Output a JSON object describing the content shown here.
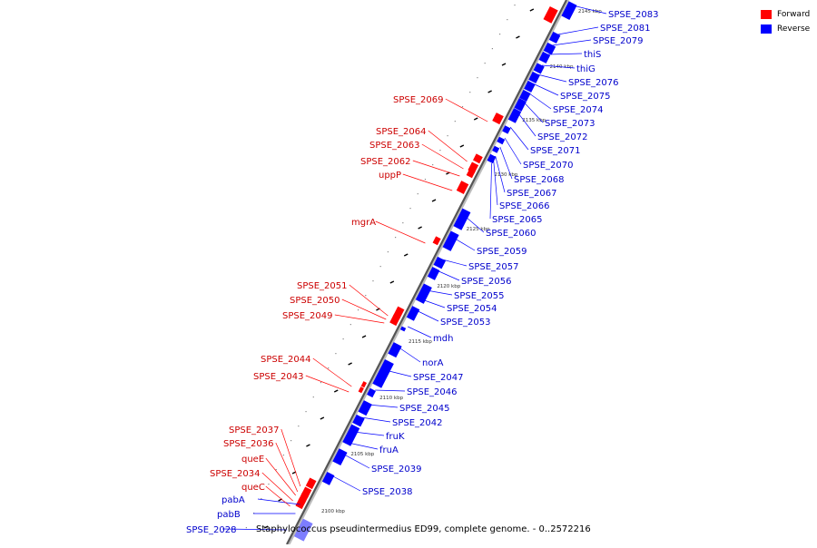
{
  "legend": {
    "forward": {
      "label": "Forward",
      "color": "#ff0000"
    },
    "reverse": {
      "label": "Reverse",
      "color": "#0000ff"
    }
  },
  "caption": "Staphylococcus pseudintermedius ED99, complete genome. - 0..2572216",
  "axis_ticks": [
    "2145 kbp",
    "2140 kbp",
    "2135 kbp",
    "2130 kbp",
    "2125 kbp",
    "2120 kbp",
    "2115 kbp",
    "2110 kbp",
    "2105 kbp",
    "2100 kbp"
  ],
  "forward_genes": [
    "SPSE_2069",
    "SPSE_2064",
    "SPSE_2063",
    "SPSE_2062",
    "uppP",
    "mgrA",
    "SPSE_2051",
    "SPSE_2050",
    "SPSE_2049",
    "SPSE_2044",
    "SPSE_2043",
    "SPSE_2037",
    "SPSE_2036",
    "queE",
    "SPSE_2034",
    "queC"
  ],
  "reverse_genes": [
    "SPSE_2083",
    "SPSE_2081",
    "SPSE_2079",
    "thiS",
    "thiG",
    "SPSE_2076",
    "SPSE_2075",
    "SPSE_2074",
    "SPSE_2073",
    "SPSE_2072",
    "SPSE_2071",
    "SPSE_2070",
    "SPSE_2068",
    "SPSE_2067",
    "SPSE_2066",
    "SPSE_2065",
    "SPSE_2060",
    "SPSE_2059",
    "SPSE_2057",
    "SPSE_2056",
    "SPSE_2055",
    "SPSE_2054",
    "SPSE_2053",
    "mdh",
    "norA",
    "SPSE_2047",
    "SPSE_2046",
    "SPSE_2045",
    "SPSE_2042",
    "fruK",
    "fruA",
    "SPSE_2039",
    "SPSE_2038",
    "pabA",
    "pabB",
    "SPSE_2028"
  ]
}
